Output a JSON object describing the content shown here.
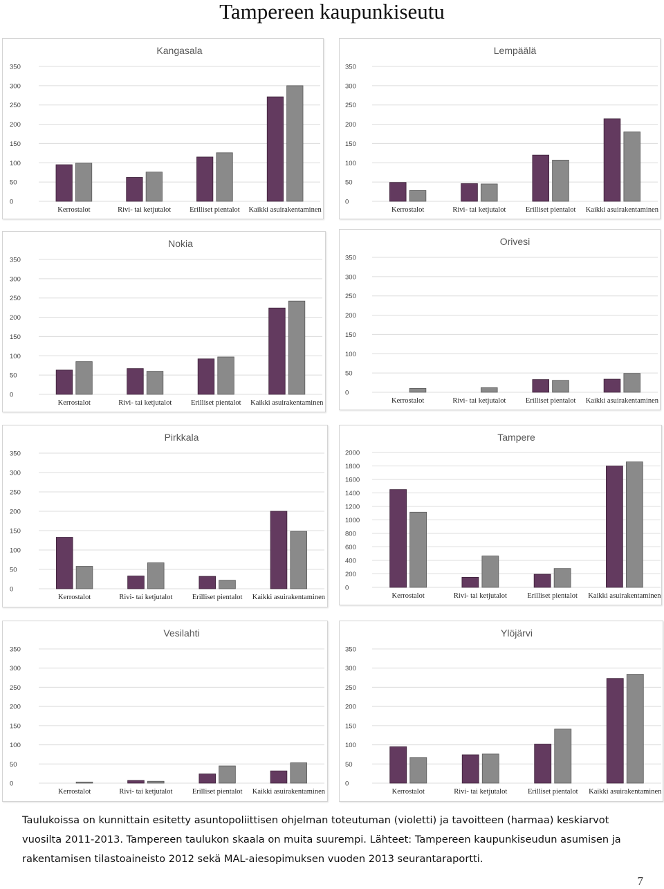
{
  "page": {
    "title": "Tampereen kaupunkiseutu",
    "caption": "Taulukoissa on kunnittain esitetty asuntopoliittisen ohjelman toteutuman (violetti) ja tavoitteen (harmaa) keskiarvot vuosilta 2011-2013. Tampereen taulukon skaala on muita suurempi. Lähteet: Tampereen kaupunkiseudun asumisen ja rakentamisen tilastoaineisto 2012 sekä MAL-aiesopimuksen vuoden 2013 seurantaraportti.",
    "page_number": "7"
  },
  "colors": {
    "toteutuma": "#633a5f",
    "tavoite": "#8a8a8a"
  },
  "chart_data": [
    {
      "type": "bar",
      "title": "Kangasala",
      "categories": [
        "Kerrostalot",
        "Rivi- tai ketjutalot",
        "Erilliset pientalot",
        "Kaikki asuirakentaminen"
      ],
      "series": [
        {
          "values": [
            95,
            62,
            115,
            271
          ]
        },
        {
          "values": [
            99,
            76,
            126,
            300
          ]
        }
      ],
      "ylim": [
        0,
        350
      ],
      "yticks": [
        "0",
        "50",
        "100",
        "150",
        "200",
        "250",
        "300",
        "350"
      ]
    },
    {
      "type": "bar",
      "title": "Lempäälä",
      "categories": [
        "Kerrostalot",
        "Rivi- tai ketjutalot",
        "Erilliset pientalot",
        "Kaikki asuirakentaminen"
      ],
      "series": [
        {
          "values": [
            49,
            46,
            120,
            214
          ]
        },
        {
          "values": [
            28,
            45,
            107,
            180
          ]
        }
      ],
      "ylim": [
        0,
        350
      ],
      "yticks": [
        "0",
        "50",
        "100",
        "150",
        "200",
        "250",
        "300",
        "350"
      ]
    },
    {
      "type": "bar",
      "title": "Nokia",
      "categories": [
        "Kerrostalot",
        "Rivi- tai ketjutalot",
        "Erilliset pientalot",
        "Kaikki asuirakentaminen"
      ],
      "series": [
        {
          "values": [
            63,
            67,
            92,
            224
          ]
        },
        {
          "values": [
            85,
            60,
            97,
            242
          ]
        }
      ],
      "ylim": [
        0,
        350
      ],
      "yticks": [
        "0",
        "50",
        "100",
        "150",
        "200",
        "250",
        "300",
        "350"
      ]
    },
    {
      "type": "bar",
      "title": "Orivesi",
      "categories": [
        "Kerrostalot",
        "Rivi- tai ketjutalot",
        "Erilliset pientalot",
        "Kaikki asuirakentaminen"
      ],
      "series": [
        {
          "values": [
            0,
            0,
            33,
            34
          ]
        },
        {
          "values": [
            10,
            12,
            31,
            49
          ]
        }
      ],
      "ylim": [
        0,
        350
      ],
      "yticks": [
        "0",
        "50",
        "100",
        "150",
        "200",
        "250",
        "300",
        "350"
      ]
    },
    {
      "type": "bar",
      "title": "Pirkkala",
      "categories": [
        "Kerrostalot",
        "Rivi- tai ketjutalot",
        "Erilliset pientalot",
        "Kaikki asuirakentaminen"
      ],
      "series": [
        {
          "values": [
            133,
            33,
            32,
            200
          ]
        },
        {
          "values": [
            58,
            67,
            22,
            148
          ]
        }
      ],
      "ylim": [
        0,
        350
      ],
      "yticks": [
        "0",
        "50",
        "100",
        "150",
        "200",
        "250",
        "300",
        "350"
      ]
    },
    {
      "type": "bar",
      "title": "Tampere",
      "categories": [
        "Kerrostalot",
        "Rivi- tai ketjutalot",
        "Erilliset pientalot",
        "Kaikki asuirakentaminen"
      ],
      "series": [
        {
          "values": [
            1450,
            150,
            195,
            1800
          ]
        },
        {
          "values": [
            1115,
            465,
            280,
            1860
          ]
        }
      ],
      "ylim": [
        0,
        2000
      ],
      "yticks": [
        "0",
        "200",
        "400",
        "600",
        "800",
        "1000",
        "1200",
        "1400",
        "1600",
        "1800",
        "2000"
      ]
    },
    {
      "type": "bar",
      "title": "Vesilahti",
      "categories": [
        "Kerrostalot",
        "Rivi- tai ketjutalot",
        "Erilliset pientalot",
        "Kaikki asuirakentaminen"
      ],
      "series": [
        {
          "values": [
            0,
            7,
            24,
            32
          ]
        },
        {
          "values": [
            3,
            5,
            45,
            53
          ]
        }
      ],
      "ylim": [
        0,
        350
      ],
      "yticks": [
        "0",
        "50",
        "100",
        "150",
        "200",
        "250",
        "300",
        "350"
      ]
    },
    {
      "type": "bar",
      "title": "Ylöjärvi",
      "categories": [
        "Kerrostalot",
        "Rivi- tai ketjutalot",
        "Erilliset pientalot",
        "Kaikki asuirakentaminen"
      ],
      "series": [
        {
          "values": [
            95,
            74,
            102,
            273
          ]
        },
        {
          "values": [
            67,
            76,
            141,
            284
          ]
        }
      ],
      "ylim": [
        0,
        350
      ],
      "yticks": [
        "0",
        "50",
        "100",
        "150",
        "200",
        "250",
        "300",
        "350"
      ]
    }
  ]
}
